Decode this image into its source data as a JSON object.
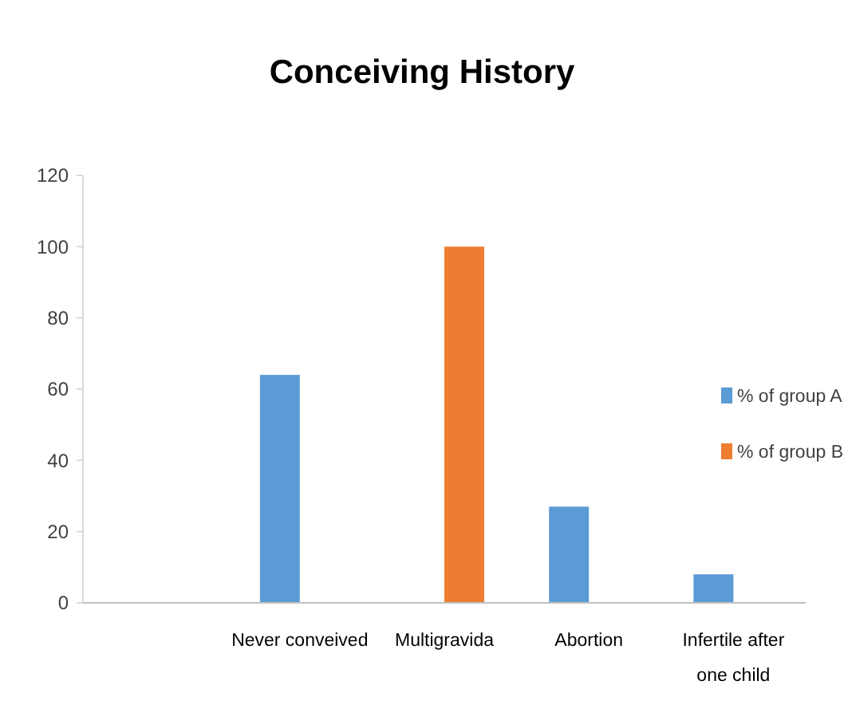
{
  "chart_data": {
    "type": "bar",
    "title": "Conceiving History",
    "categories": [
      null,
      "Never conveived",
      "Multigravida",
      "Abortion",
      "Infertile after one child"
    ],
    "series": [
      {
        "name": "% of group A",
        "color": "#5b9bd5",
        "values": [
          null,
          64,
          null,
          27,
          8
        ]
      },
      {
        "name": "% of group B",
        "color": "#ed7d31",
        "values": [
          null,
          null,
          100,
          null,
          null
        ]
      }
    ],
    "ylim": [
      0,
      120
    ],
    "yticks": [
      0,
      20,
      40,
      60,
      80,
      100,
      120
    ],
    "grid": false,
    "legend": "right"
  }
}
